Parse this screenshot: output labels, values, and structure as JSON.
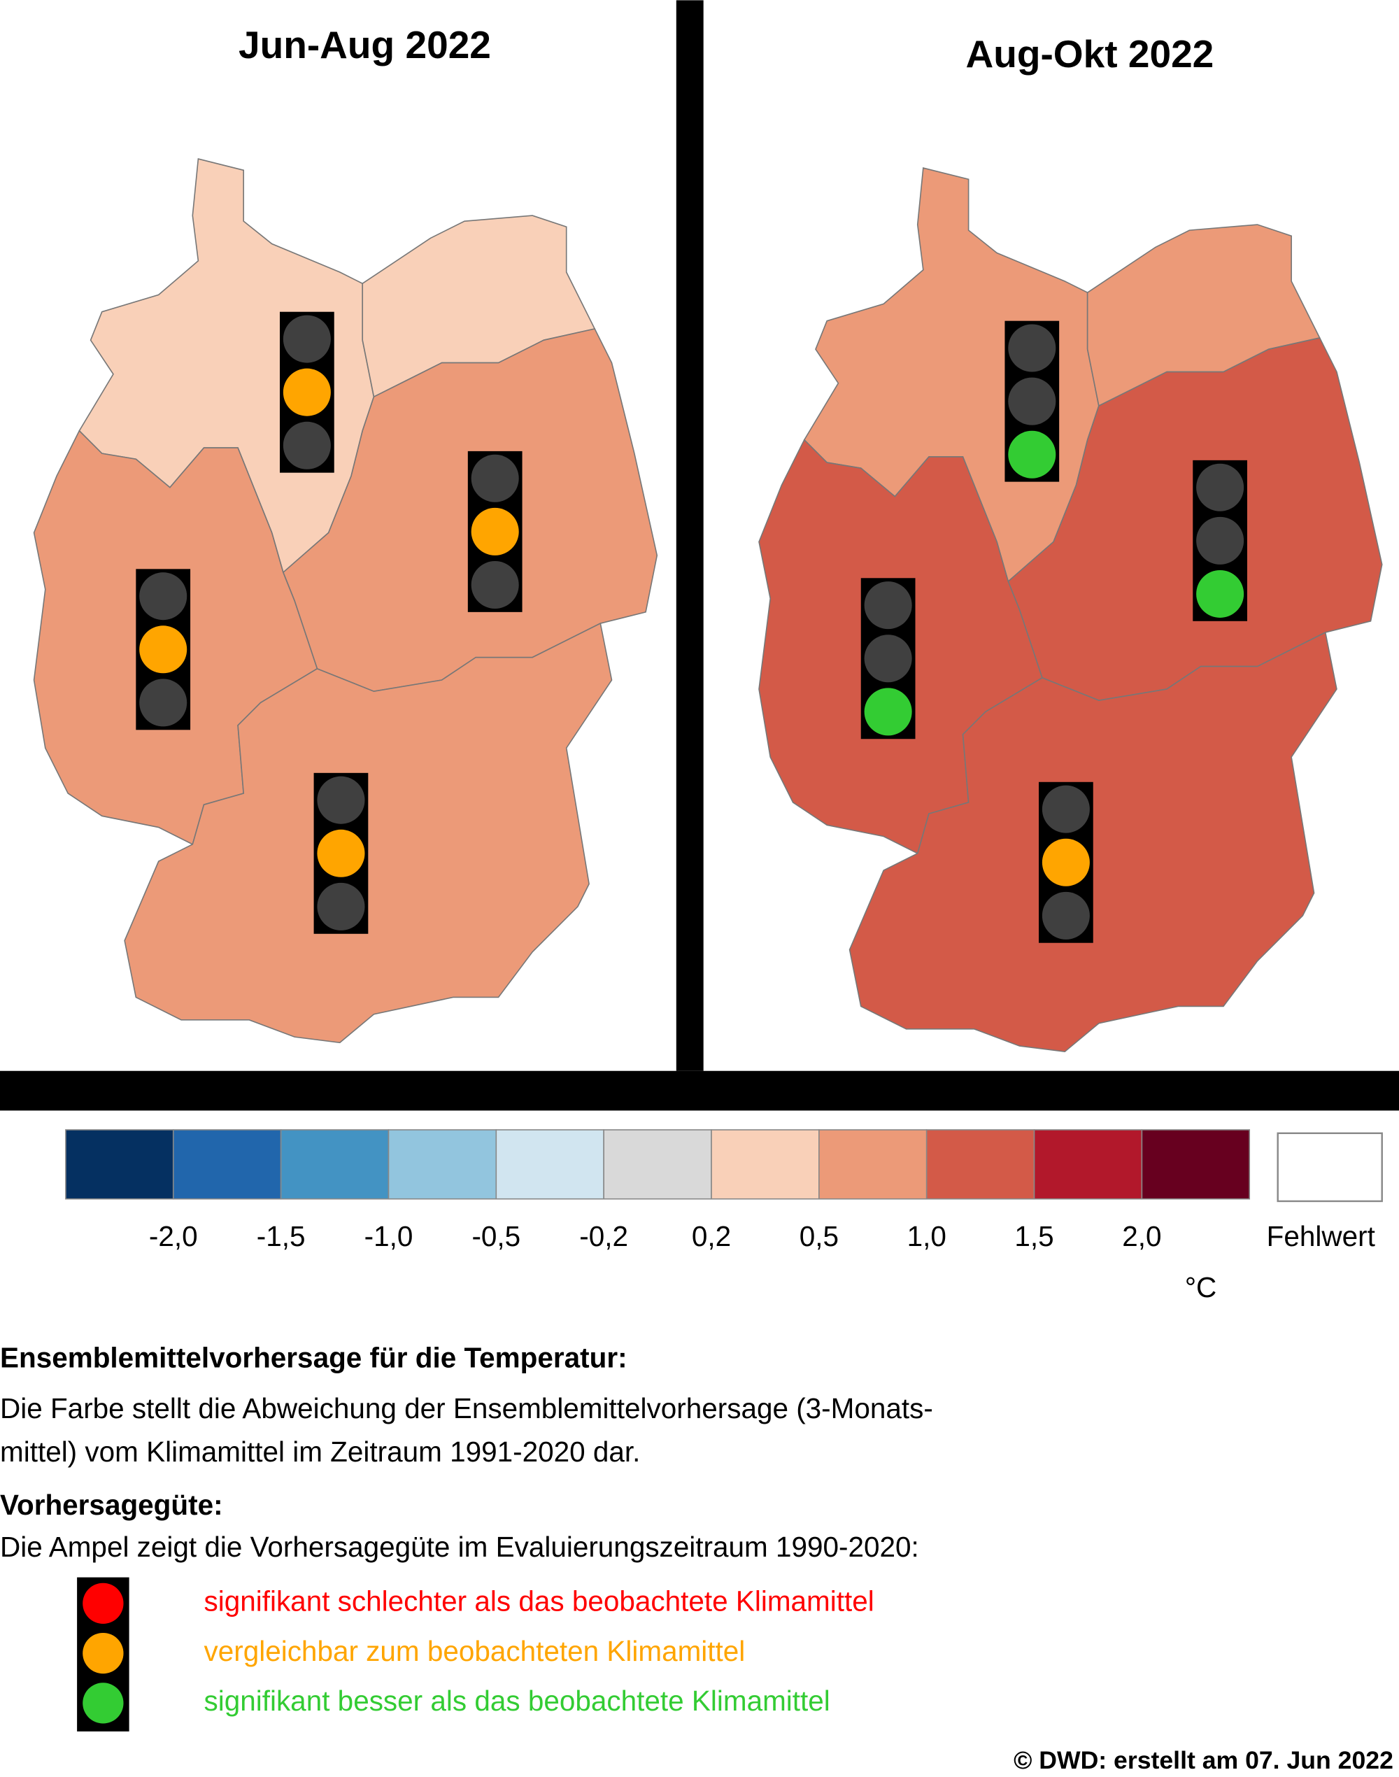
{
  "panels": [
    {
      "title": "Jun-Aug 2022",
      "regions": [
        "#f9d0b8",
        "#f9d0b8",
        "#ec9a78",
        "#ec9a78",
        "#ec9a78"
      ],
      "lights": [
        "#ffa500",
        "#ffa500",
        "#ffa500",
        "#ffa500"
      ]
    },
    {
      "title": "Aug-Okt 2022",
      "regions": [
        "#ec9a78",
        "#ec9a78",
        "#d35a48",
        "#d35a48",
        "#d35a48"
      ],
      "lights": [
        "#33cc33",
        "#33cc33",
        "#33cc33",
        "#ffa500"
      ]
    }
  ],
  "legend": {
    "colors": [
      "#053061",
      "#2166ac",
      "#4393c3",
      "#92c5de",
      "#d1e5f0",
      "#d9d9d9",
      "#f9d0b8",
      "#ec9a78",
      "#d35a48",
      "#b2182b",
      "#67001f"
    ],
    "ticks": [
      {
        "value": -2,
        "label": "-2,0"
      },
      {
        "value": -1.5,
        "label": "-1,5"
      },
      {
        "value": -1,
        "label": "-1,0"
      },
      {
        "value": -0.5,
        "label": "-0,5"
      },
      {
        "value": -0.2,
        "label": "-0,2"
      },
      {
        "value": 0.2,
        "label": "0,2"
      },
      {
        "value": 0.5,
        "label": "0,5"
      },
      {
        "value": 1,
        "label": "1,0"
      },
      {
        "value": 1.5,
        "label": "1,5"
      },
      {
        "value": 2,
        "label": "2,0"
      }
    ],
    "missing_label": "Fehlwert",
    "unit": "°C"
  },
  "description": {
    "heading": "Ensemblemittelvorhersage für die Temperatur:",
    "lines": [
      "Die Farbe stellt die Abweichung der Ensemblemittelvorhersage (3-Monats-",
      "mittel) vom Klimamittel im Zeitraum 1991-2020 dar."
    ],
    "heading2": "Vorhersagegüte:",
    "intro": "Die Ampel zeigt die Vorhersagegüte im Evaluierungszeitraum 1990-2020:",
    "key": [
      {
        "color": "#ff0000",
        "label": "signifikant schlechter als das beobachtete Klimamittel"
      },
      {
        "color": "#ffa500",
        "label": "vergleichbar zum beobachteten Klimamittel"
      },
      {
        "color": "#33cc33",
        "label": "signifikant besser als das beobachtete Klimamittel"
      }
    ]
  },
  "footer": "©  DWD: erstellt am 07. Jun 2022"
}
